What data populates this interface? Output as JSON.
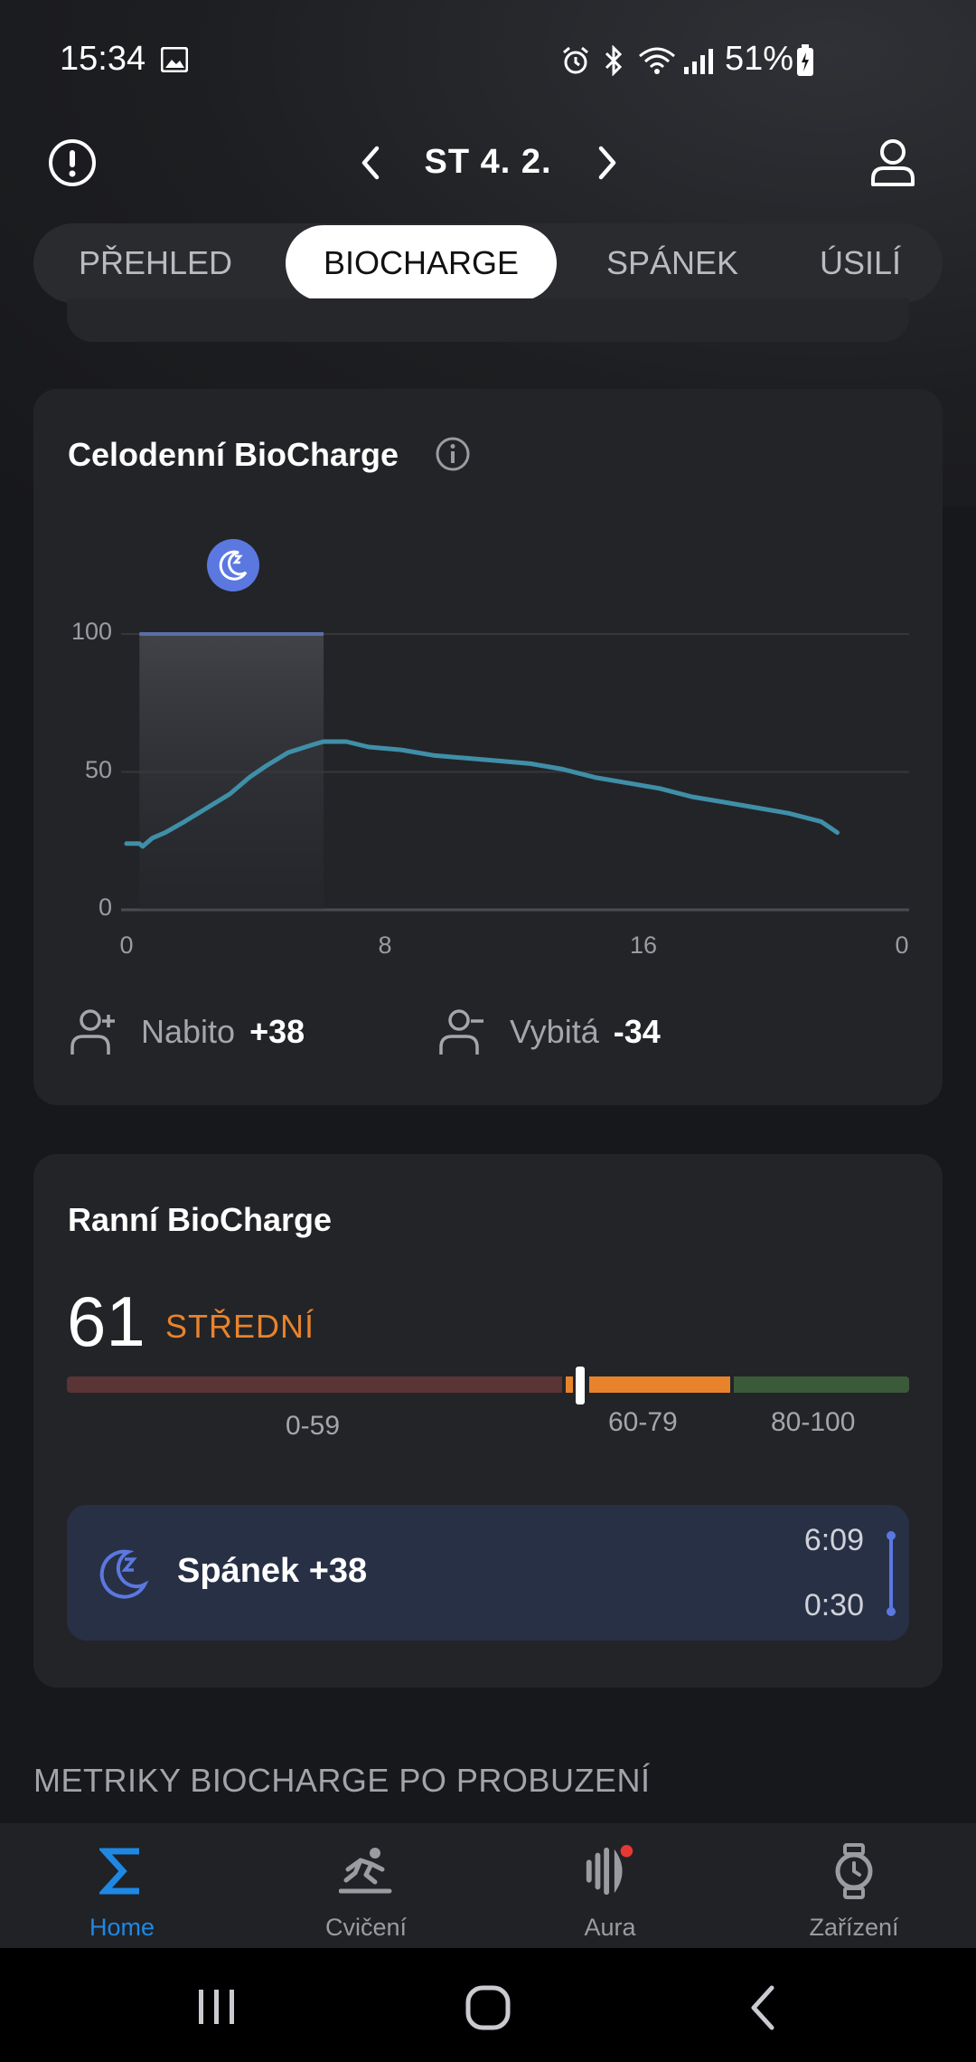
{
  "status_bar": {
    "time": "15:34",
    "battery": "51%",
    "icons": [
      "image-icon",
      "alarm-icon",
      "bluetooth-icon",
      "wifi-icon",
      "signal-icon",
      "battery-charging-icon"
    ]
  },
  "header": {
    "date": "ST 4. 2.",
    "left_icon": "alert-icon",
    "right_icon": "profile-icon"
  },
  "tabs": [
    {
      "label": "PŘEHLED",
      "active": false
    },
    {
      "label": "BIOCHARGE",
      "active": true
    },
    {
      "label": "SPÁNEK",
      "active": false
    },
    {
      "label": "ÚSILÍ",
      "active": false
    }
  ],
  "daily_card": {
    "title": "Celodenní BioCharge",
    "chart_data": {
      "type": "line",
      "title": "Celodenní BioCharge",
      "xlabel": "",
      "ylabel": "",
      "x_tick_labels": [
        "0",
        "8",
        "16",
        "0"
      ],
      "y_tick_labels": [
        "100",
        "50",
        "0"
      ],
      "ylim": [
        0,
        100
      ],
      "xlim": [
        0,
        24
      ],
      "grid": true,
      "sleep_period": {
        "start": 0.4,
        "end": 6.1,
        "level": 100,
        "icon": "sleep-moon-icon"
      },
      "series": [
        {
          "color": "#3f8fa8",
          "x": [
            0,
            0.4,
            0.5,
            0.8,
            1.2,
            1.8,
            2.5,
            3.2,
            3.8,
            4.3,
            5.0,
            5.8,
            6.1,
            6.8,
            7.5,
            8.5,
            9.5,
            10.5,
            11.5,
            12.5,
            13.5,
            14.5,
            15.5,
            16.5,
            17.5,
            18.5,
            19.5,
            20.5,
            21.5,
            22.0
          ],
          "y": [
            24,
            24,
            23,
            26,
            28,
            32,
            37,
            42,
            48,
            52,
            57,
            60,
            61,
            61,
            59,
            58,
            56,
            55,
            54,
            53,
            51,
            48,
            46,
            44,
            41,
            39,
            37,
            35,
            32,
            28
          ]
        }
      ]
    },
    "stats": {
      "charged_label": "Nabito",
      "charged_value": "+38",
      "drained_label": "Vybitá",
      "drained_value": "-34"
    }
  },
  "morning_card": {
    "title": "Ranní BioCharge",
    "score": "61",
    "level": "STŘEDNÍ",
    "score_value": 61,
    "ranges": [
      {
        "label": "0-59",
        "color": "#5b3436"
      },
      {
        "label": "60-79",
        "color": "#e8832c"
      },
      {
        "label": "80-100",
        "color": "#3a5a3a"
      }
    ],
    "sleep": {
      "label": "Spánek +38",
      "start_time": "6:09",
      "end_time": "0:30"
    }
  },
  "section_header": "METRIKY BIOCHARGE PO PROBUZENÍ",
  "bottom_nav": [
    {
      "label": "Home",
      "icon": "sigma-icon",
      "active": true
    },
    {
      "label": "Cvičení",
      "icon": "workout-icon",
      "active": false
    },
    {
      "label": "Aura",
      "icon": "aura-icon",
      "active": false,
      "badge": true
    },
    {
      "label": "Zařízení",
      "icon": "watch-icon",
      "active": false
    }
  ],
  "colors": {
    "accent_blue": "#1e88e5",
    "orange": "#e8832c",
    "line": "#3f8fa8",
    "sleep_blue": "#5b78e0"
  }
}
